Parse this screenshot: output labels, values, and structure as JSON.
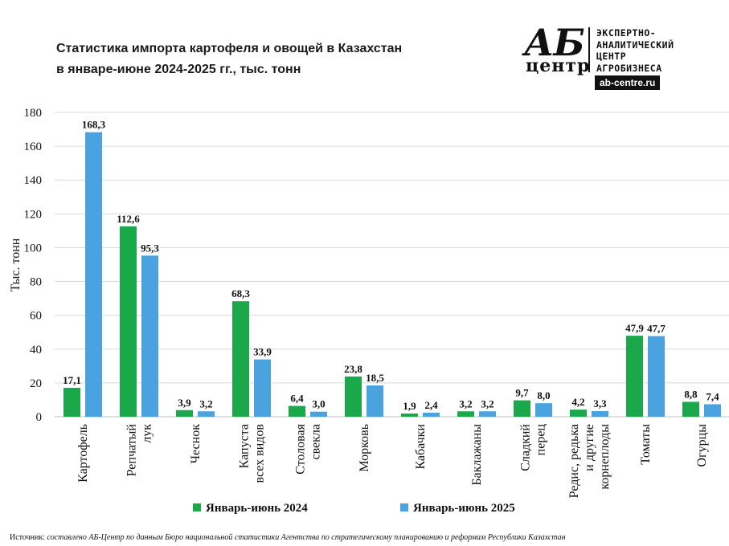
{
  "title_line1": "Статистика импорта картофеля и овощей в Казахстан",
  "title_line2": "в январе-июне 2024-2025 гг., тыс. тонн",
  "logo": {
    "mark": "АБ",
    "sub": "центр",
    "text_lines": [
      "ЭКСПЕРТНО-",
      "АНАЛИТИЧЕСКИЙ",
      "ЦЕНТР",
      "АГРОБИЗНЕСА"
    ],
    "site": "ab-centre.ru"
  },
  "source_label": "Источник:",
  "source_text": "составлено АБ-Центр по данным Бюро национальной статистики Агентства по стратегическому планированию и реформам Республики Казахстан",
  "colors": {
    "series_2024": "#1aa84b",
    "series_2025": "#4aa3df",
    "grid": "#d9d9d9"
  },
  "chart_data": {
    "type": "bar",
    "categories": [
      [
        "Картофель"
      ],
      [
        "Репчатый",
        "лук"
      ],
      [
        "Чеснок"
      ],
      [
        "Капуста",
        "всех видов"
      ],
      [
        "Столовая",
        "свекла"
      ],
      [
        "Морковь"
      ],
      [
        "Кабачки"
      ],
      [
        "Баклажаны"
      ],
      [
        "Сладкий",
        "перец"
      ],
      [
        "Редис, редька",
        "и другие",
        "корнеплоды"
      ],
      [
        "Томаты"
      ],
      [
        "Огурцы"
      ]
    ],
    "series": [
      {
        "name": "Январь-июнь 2024",
        "values": [
          17.1,
          112.6,
          3.9,
          68.3,
          6.4,
          23.8,
          1.9,
          3.2,
          9.7,
          4.2,
          47.9,
          8.8
        ],
        "labels": [
          "17,1",
          "112,6",
          "3,9",
          "68,3",
          "6,4",
          "23,8",
          "1,9",
          "3,2",
          "9,7",
          "4,2",
          "47,9",
          "8,8"
        ]
      },
      {
        "name": "Январь-июнь 2025",
        "values": [
          168.3,
          95.3,
          3.2,
          33.9,
          3.0,
          18.5,
          2.4,
          3.2,
          8.0,
          3.3,
          47.7,
          7.4
        ],
        "labels": [
          "168,3",
          "95,3",
          "3,2",
          "33,9",
          "3,0",
          "18,5",
          "2,4",
          "3,2",
          "8,0",
          "3,3",
          "47,7",
          "7,4"
        ]
      }
    ],
    "ylabel": "Тыс. тонн",
    "ylim": [
      0,
      180
    ],
    "yticks": [
      0,
      20,
      40,
      60,
      80,
      100,
      120,
      140,
      160,
      180
    ],
    "grid": true,
    "legend_position": "bottom"
  }
}
